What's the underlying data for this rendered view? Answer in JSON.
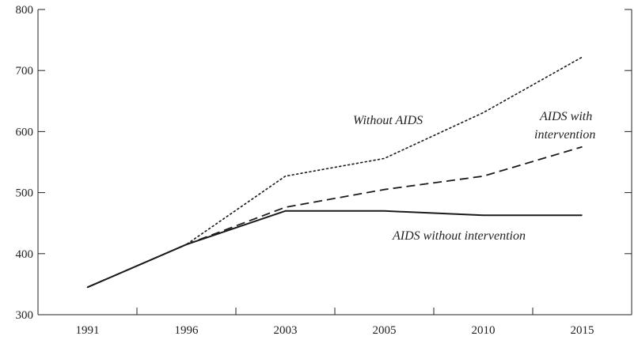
{
  "chart_data": {
    "type": "line",
    "title": "",
    "xlabel": "",
    "ylabel": "",
    "categories": [
      "1991",
      "1996",
      "2003",
      "2005",
      "2010",
      "2015"
    ],
    "ylim": [
      300,
      800
    ],
    "yticks": [
      300,
      400,
      500,
      600,
      700,
      800
    ],
    "grid": false,
    "series": [
      {
        "name": "Without AIDS",
        "style": "dotted",
        "values": [
          345,
          415,
          527,
          556,
          631,
          722
        ]
      },
      {
        "name": "AIDS with intervention",
        "style": "dashed",
        "values": [
          345,
          415,
          476,
          505,
          527,
          575
        ]
      },
      {
        "name": "AIDS without intervention",
        "style": "solid",
        "values": [
          345,
          415,
          470,
          470,
          463,
          463
        ]
      }
    ],
    "annotations": {
      "without_aids": "Without AIDS",
      "with_intervention_line1": "AIDS with",
      "with_intervention_line2": "intervention",
      "without_intervention": "AIDS without intervention"
    }
  }
}
